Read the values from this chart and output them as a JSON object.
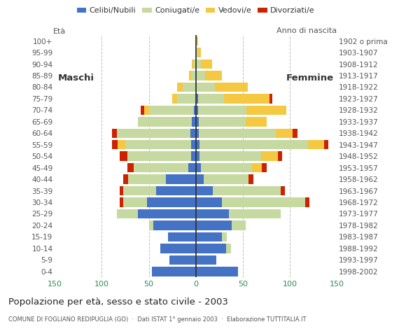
{
  "age_groups": [
    "0-4",
    "5-9",
    "10-14",
    "15-19",
    "20-24",
    "25-29",
    "30-34",
    "35-39",
    "40-44",
    "45-49",
    "50-54",
    "55-59",
    "60-64",
    "65-69",
    "70-74",
    "75-79",
    "80-84",
    "85-89",
    "90-94",
    "95-99",
    "100+"
  ],
  "birth_years": [
    "1998-2002",
    "1993-1997",
    "1988-1992",
    "1983-1987",
    "1978-1982",
    "1973-1977",
    "1968-1972",
    "1963-1967",
    "1958-1962",
    "1953-1957",
    "1948-1952",
    "1943-1947",
    "1938-1942",
    "1933-1937",
    "1928-1932",
    "1923-1927",
    "1918-1922",
    "1913-1917",
    "1908-1912",
    "1903-1907",
    "1902 o prima"
  ],
  "colors": {
    "celibe": "#4472c4",
    "coniugato": "#c5d9a0",
    "vedovo": "#f5c842",
    "divorziato": "#cc2200"
  },
  "males": {
    "celibe": [
      47,
      28,
      38,
      30,
      45,
      62,
      52,
      42,
      32,
      8,
      5,
      5,
      6,
      4,
      2,
      0,
      0,
      0,
      0,
      0,
      0
    ],
    "coniugato": [
      0,
      0,
      0,
      0,
      5,
      22,
      25,
      35,
      40,
      58,
      68,
      70,
      78,
      58,
      48,
      20,
      14,
      5,
      2,
      0,
      0
    ],
    "vedovo": [
      0,
      0,
      0,
      0,
      0,
      0,
      0,
      0,
      0,
      0,
      0,
      8,
      0,
      0,
      5,
      5,
      6,
      2,
      2,
      0,
      0
    ],
    "divorziato": [
      0,
      0,
      0,
      0,
      0,
      0,
      4,
      4,
      5,
      7,
      8,
      6,
      5,
      0,
      4,
      0,
      0,
      0,
      0,
      0,
      0
    ]
  },
  "females": {
    "celibe": [
      45,
      22,
      32,
      28,
      38,
      35,
      28,
      18,
      8,
      5,
      4,
      4,
      3,
      3,
      2,
      2,
      0,
      0,
      0,
      0,
      0
    ],
    "coniugato": [
      0,
      0,
      5,
      5,
      15,
      55,
      88,
      72,
      48,
      55,
      65,
      115,
      82,
      50,
      52,
      28,
      20,
      10,
      5,
      2,
      0
    ],
    "vedovo": [
      0,
      0,
      0,
      0,
      0,
      0,
      0,
      0,
      0,
      10,
      18,
      17,
      18,
      22,
      42,
      48,
      35,
      18,
      12,
      3,
      2
    ],
    "divorziato": [
      0,
      0,
      0,
      0,
      0,
      0,
      5,
      5,
      5,
      5,
      5,
      5,
      5,
      0,
      0,
      3,
      0,
      0,
      0,
      0,
      0
    ]
  },
  "xlim": 150,
  "title": "Popolazione per età, sesso e stato civile - 2003",
  "subtitle": "COMUNE DI FOGLIANO REDIPUGLIA (GO)  ·  Dati ISTAT 1° gennaio 2003  ·  Elaborazione TUTTITALIA.IT",
  "ylabel": "Età",
  "ylabel_right": "Anno di nascita",
  "bg_color": "#ffffff",
  "grid_color": "#c0c0c0",
  "bar_height": 0.82
}
